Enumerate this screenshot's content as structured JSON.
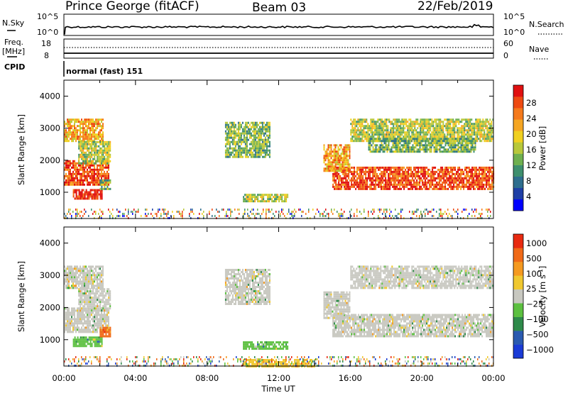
{
  "header": {
    "station": "Prince George (fitACF)",
    "beam": "Beam 03",
    "date": "22/Feb/2019"
  },
  "status_panels": {
    "nsky_label": "N.Sky",
    "nsearch_label": "N.Search",
    "nsky_ticks": [
      "10^5",
      "10^0"
    ],
    "nsearch_ticks": [
      "10^5",
      "10^0"
    ],
    "freq_label": "Freq.",
    "freq_unit": "[MHz]",
    "freq_ticks": [
      "18",
      "8"
    ],
    "nave_label": "Nave",
    "nave_ticks": [
      "60",
      "0"
    ],
    "cpid_label": "CPID",
    "cpid_text": "normal (fast) 151"
  },
  "chart_data": [
    {
      "type": "heatmap",
      "ylabel": "Slant Range [km]",
      "xlabel": "Time UT",
      "x_ticks": [
        "00:00",
        "04:00",
        "08:00",
        "12:00",
        "16:00",
        "20:00",
        "00:00"
      ],
      "y_ticks": [
        "4000",
        "3000",
        "2000",
        "1000"
      ],
      "xlim_hours": [
        0,
        24
      ],
      "ylim_km": [
        180,
        4500
      ],
      "colorbar": {
        "label": "Power [dB]",
        "ticks": [
          "28",
          "24",
          "20",
          "16",
          "12",
          "8",
          "4"
        ],
        "colors": [
          "#0000ff",
          "#1f3fa6",
          "#2e6e8e",
          "#3e8f6e",
          "#6fb04f",
          "#b8c83a",
          "#f0d020",
          "#f5a623",
          "#f57a1c",
          "#ee4a12",
          "#e01010"
        ]
      },
      "regions": [
        {
          "t": [
            0.0,
            2.5
          ],
          "r": [
            1250,
            2000
          ],
          "level": 9
        },
        {
          "t": [
            0.5,
            2.1
          ],
          "r": [
            800,
            1100
          ],
          "level": 10
        },
        {
          "t": [
            0.0,
            2.2
          ],
          "r": [
            2600,
            3300
          ],
          "level": 7
        },
        {
          "t": [
            0.8,
            2.6
          ],
          "r": [
            1900,
            2600
          ],
          "level": 5
        },
        {
          "t": [
            2.0,
            2.6
          ],
          "r": [
            1100,
            1400
          ],
          "level": 4
        },
        {
          "t": [
            9.0,
            11.5
          ],
          "r": [
            2100,
            3200
          ],
          "level": 4
        },
        {
          "t": [
            10.0,
            12.5
          ],
          "r": [
            750,
            950
          ],
          "level": 5
        },
        {
          "t": [
            15.0,
            24.0
          ],
          "r": [
            1100,
            1800
          ],
          "level": 9
        },
        {
          "t": [
            14.5,
            16.0
          ],
          "r": [
            1700,
            2500
          ],
          "level": 7
        },
        {
          "t": [
            16.0,
            24.0
          ],
          "r": [
            2600,
            3300
          ],
          "level": 5
        },
        {
          "t": [
            17.0,
            23.0
          ],
          "r": [
            2300,
            2700
          ],
          "level": 4
        }
      ]
    },
    {
      "type": "heatmap",
      "ylabel": "Slant Range [km]",
      "xlabel": "Time UT",
      "x_ticks": [
        "00:00",
        "04:00",
        "08:00",
        "12:00",
        "16:00",
        "20:00",
        "00:00"
      ],
      "y_ticks": [
        "4000",
        "3000",
        "2000",
        "1000"
      ],
      "xlim_hours": [
        0,
        24
      ],
      "ylim_km": [
        180,
        4500
      ],
      "colorbar": {
        "label": "Velocity [m s",
        "label_sup": "-1",
        "label_end": "]",
        "ticks": [
          "1000",
          "500",
          "100",
          "25",
          "−25",
          "−100",
          "−500",
          "−1000"
        ],
        "colors": [
          "#1a3bd6",
          "#2a5ab0",
          "#2e8a4a",
          "#5cc040",
          "#c8c8c0",
          "#f0c830",
          "#f59a20",
          "#f06a18",
          "#e82a10"
        ]
      },
      "regions": [
        {
          "t": [
            0.0,
            2.5
          ],
          "r": [
            1250,
            2000
          ],
          "level": 4
        },
        {
          "t": [
            0.5,
            2.1
          ],
          "r": [
            800,
            1100
          ],
          "level": 3
        },
        {
          "t": [
            0.0,
            2.2
          ],
          "r": [
            2600,
            3300
          ],
          "level": 4
        },
        {
          "t": [
            0.8,
            2.6
          ],
          "r": [
            1900,
            2600
          ],
          "level": 4
        },
        {
          "t": [
            2.0,
            2.6
          ],
          "r": [
            1100,
            1400
          ],
          "level": 7
        },
        {
          "t": [
            9.0,
            11.5
          ],
          "r": [
            2100,
            3200
          ],
          "level": 4
        },
        {
          "t": [
            10.0,
            12.5
          ],
          "r": [
            750,
            950
          ],
          "level": 3
        },
        {
          "t": [
            15.0,
            24.0
          ],
          "r": [
            1100,
            1800
          ],
          "level": 4
        },
        {
          "t": [
            14.5,
            16.0
          ],
          "r": [
            1700,
            2500
          ],
          "level": 4
        },
        {
          "t": [
            16.0,
            24.0
          ],
          "r": [
            2600,
            3300
          ],
          "level": 4
        },
        {
          "t": [
            10.0,
            14.0
          ],
          "r": [
            180,
            400
          ],
          "level": 5
        }
      ]
    }
  ]
}
